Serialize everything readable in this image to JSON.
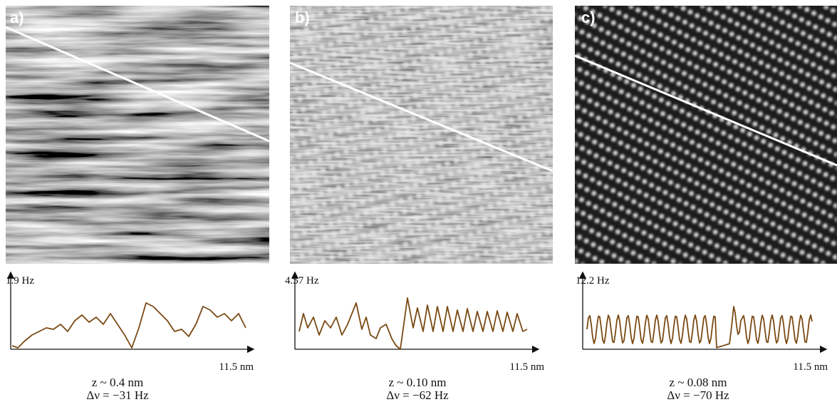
{
  "panels": [
    {
      "label": "a)",
      "y_label": "1.9 Hz",
      "x_label": "11.5 nm",
      "z": "z ~ 0.4 nm",
      "df": "Δν = −31 Hz"
    },
    {
      "label": "b)",
      "y_label": "4.57 Hz",
      "x_label": "11.5 nm",
      "z": "z ~ 0.10 nm",
      "df": "Δν = −62 Hz"
    },
    {
      "label": "c)",
      "y_label": "12.2 Hz",
      "x_label": "11.5 nm",
      "z": "z ~ 0.08 nm",
      "df": "Δν = −70 Hz"
    }
  ]
}
